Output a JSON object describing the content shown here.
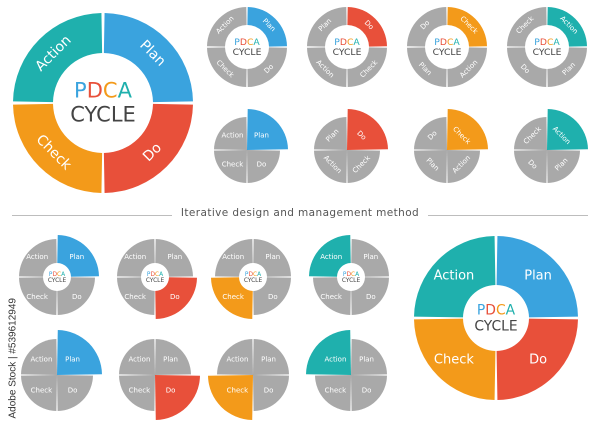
{
  "title": {
    "letters": [
      "P",
      "D",
      "C",
      "A"
    ],
    "letter_colors": [
      "#3aa3de",
      "#e8503a",
      "#f39a1a",
      "#1fb0ad"
    ],
    "line2": "CYCLE"
  },
  "phases": [
    {
      "name": "Plan",
      "color": "#3aa3de"
    },
    {
      "name": "Do",
      "color": "#e8503a"
    },
    {
      "name": "Check",
      "color": "#f39a1a"
    },
    {
      "name": "Action",
      "color": "#1fb0ad"
    }
  ],
  "inactive_color": "#a9a9a9",
  "subtitle": "Iterative design and management method",
  "watermark": "Adobe Stock | #539612949"
}
